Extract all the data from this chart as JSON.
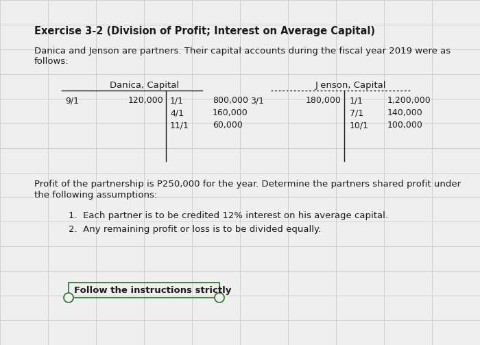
{
  "title": "Exercise 3-2 (Division of Profit; Interest on Average Capital)",
  "intro_line1": "Danica and Jenson are partners. Their capital accounts during the fiscal year 2019 were as",
  "intro_line2": "follows:",
  "danica_label": "Danica, Capital",
  "jenson_label": "J enson, Capital",
  "danica_debit": [
    {
      "date": "9/1",
      "amount": "120,000"
    }
  ],
  "danica_credit": [
    {
      "date": "1/1",
      "amount": "800,000"
    },
    {
      "date": "4/1",
      "amount": "160,000"
    },
    {
      "date": "11/1",
      "amount": "60,000"
    }
  ],
  "jenson_debit": [
    {
      "date": "3/1",
      "amount": "180,000"
    }
  ],
  "jenson_credit": [
    {
      "date": "1/1",
      "amount": "1,200,000"
    },
    {
      "date": "7/1",
      "amount": "140,000"
    },
    {
      "date": "10/1",
      "amount": "100,000"
    }
  ],
  "profit_line1": "Profit of the partnership is P250,000 for the year. Determine the partners shared profit under",
  "profit_line2": "the following assumptions:",
  "assumption1": "Each partner is to be credited 12% interest on his average capital.",
  "assumption2": "Any remaining profit or loss is to be divided equally.",
  "footer_text": "Follow the instructions strictly",
  "bg_color": "#efefef",
  "text_color": "#1a1a1a",
  "grid_color": "#cccccc",
  "green_color": "#2e7d32",
  "font_size_title": 10.5,
  "font_size_body": 9.5,
  "font_size_table": 9.0
}
